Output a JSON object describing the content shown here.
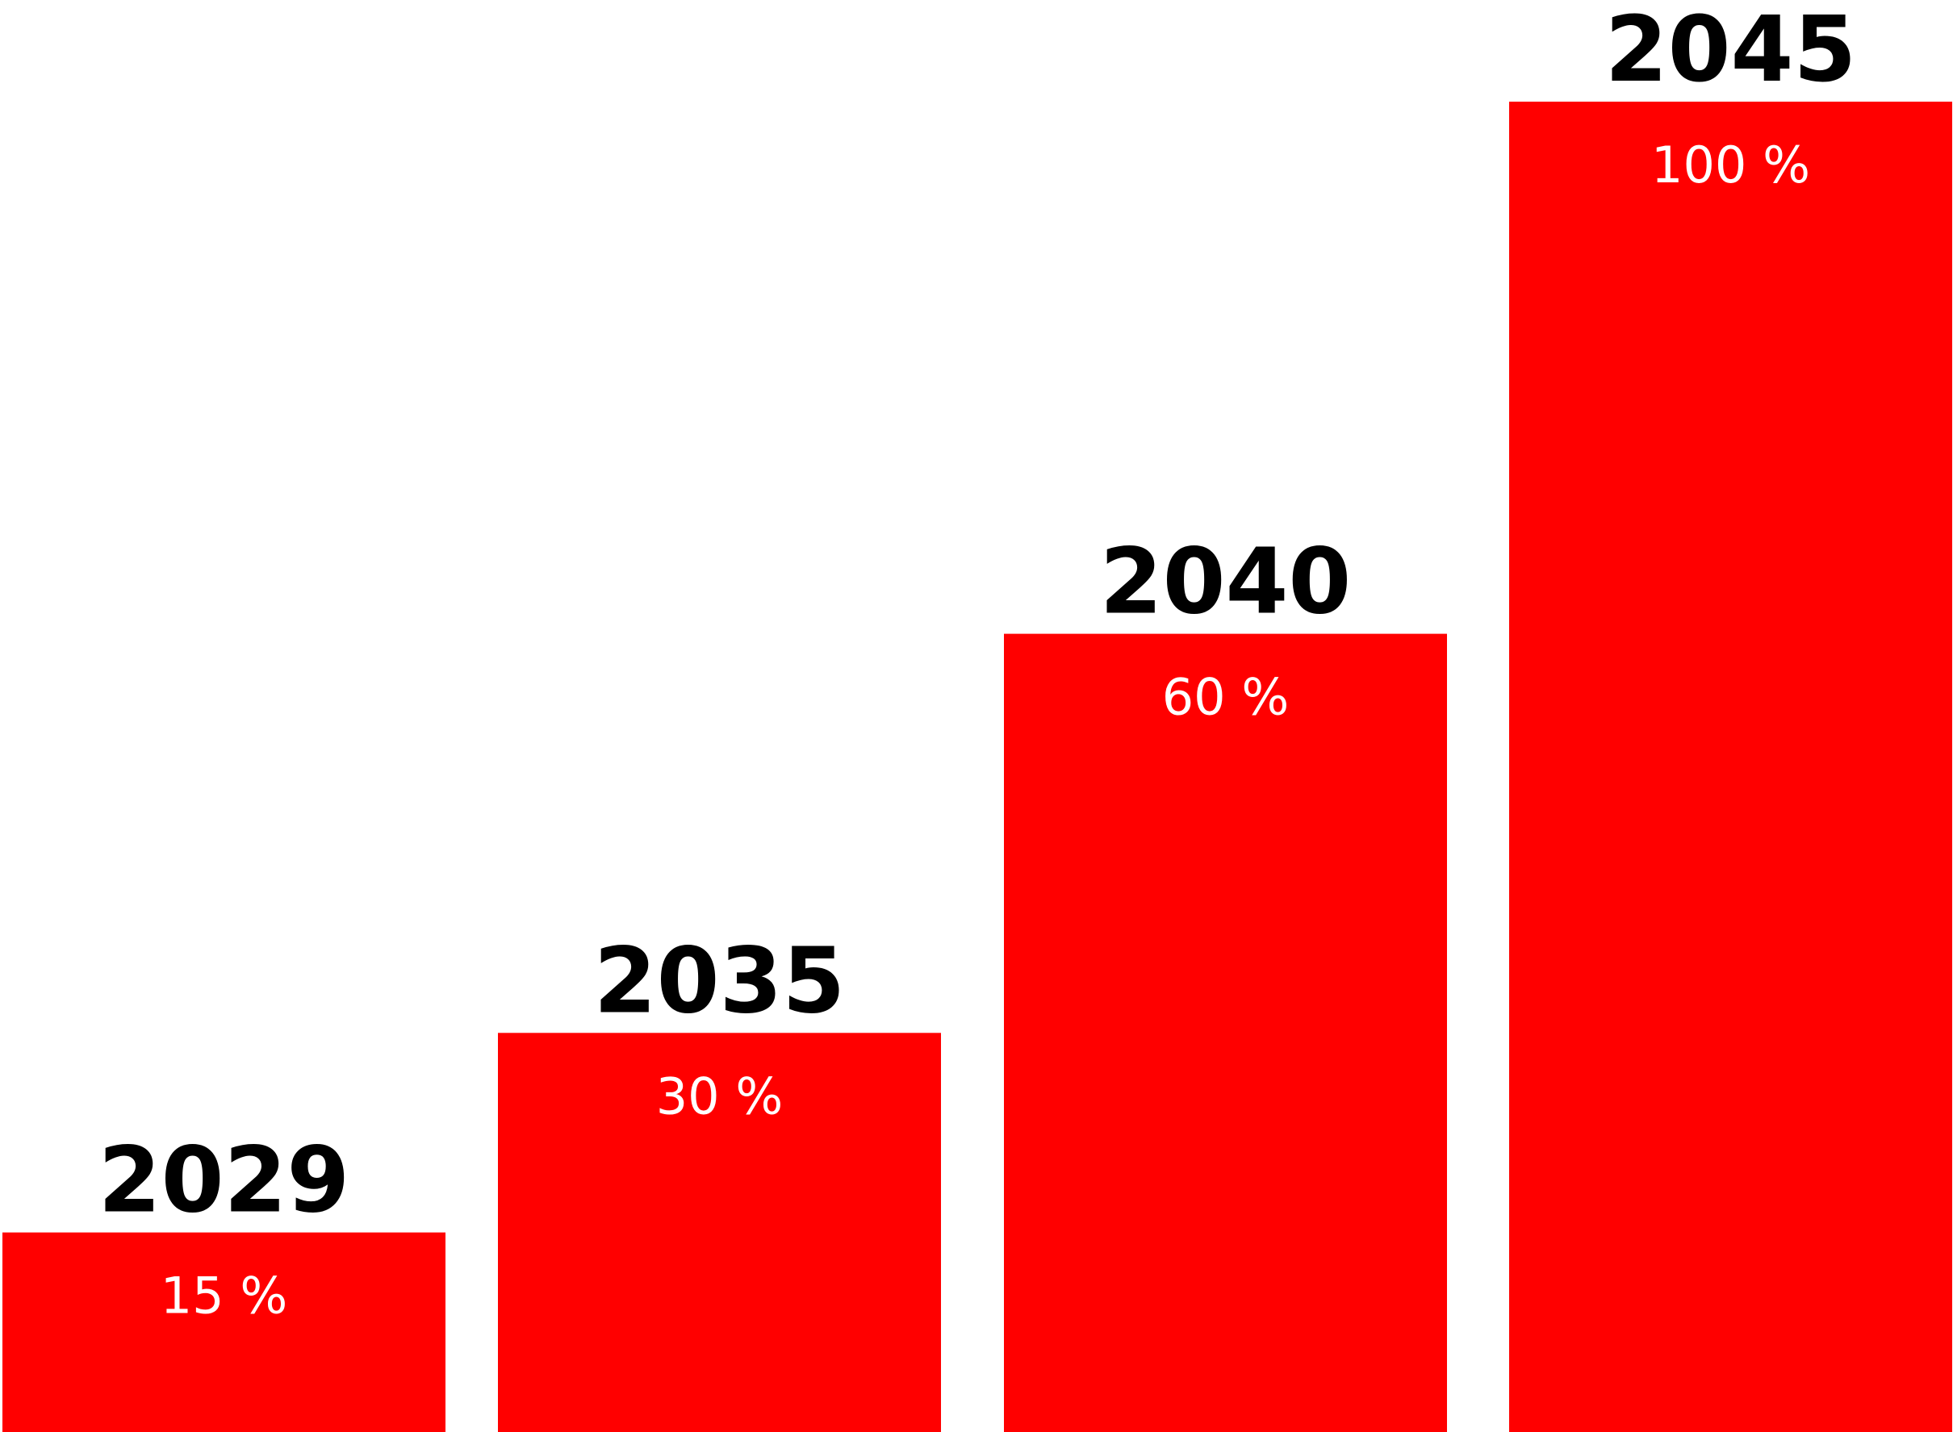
{
  "chart_data": {
    "type": "bar",
    "categories": [
      "2029",
      "2035",
      "2040",
      "2045"
    ],
    "values": [
      15,
      30,
      60,
      100
    ],
    "value_labels": [
      "15 %",
      "30 %",
      "60 %",
      "100 %"
    ],
    "ylim": [
      0,
      100
    ],
    "grid": false,
    "legend": "none",
    "title": "",
    "xlabel": "",
    "ylabel": ""
  },
  "colors": {
    "bar": "#ff0000",
    "value_text": "#ffffff",
    "category_text": "#000000",
    "background": "#ffffff"
  }
}
